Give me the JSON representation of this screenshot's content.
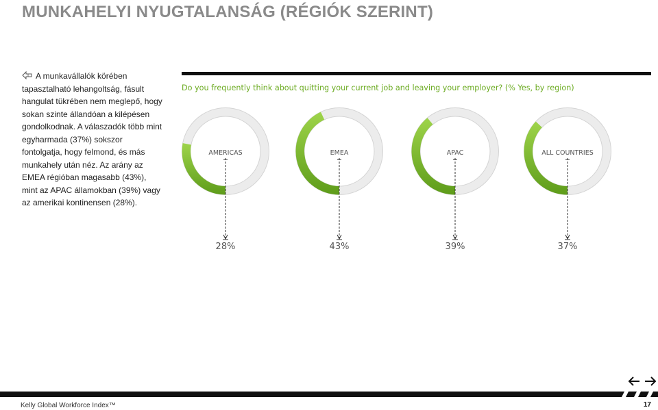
{
  "page": {
    "title": "MUNKAHELYI NYUGTALANSÁG (RÉGIÓK SZERINT)",
    "intro_text": "A munkavállalók körében tapasztalható lehangoltság, fásult hangulat tükrében nem meglepő, hogy sokan szinte állandóan a kilépésen gondolkodnak. A válaszadók több mint egyharmada (37%) sokszor fontolgatja, hogy felmond, és más munkahely után néz. Az arány az EMEA régióban magasabb (43%), mint az APAC államokban (39%) vagy az amerikai kontinensen (28%).",
    "bullet_icon": "pointing-hand-icon"
  },
  "footer": {
    "source": "Kelly Global Workforce Index™",
    "page_number": "17",
    "prev_icon": "arrow-left-icon",
    "next_icon": "arrow-right-icon"
  },
  "chart_data": {
    "type": "pie",
    "title": "Do you frequently think about quitting your current job and leaving your employer? (% Yes, by region)",
    "categories": [
      "AMERICAS",
      "EMEA",
      "APAC",
      "ALL COUNTRIES"
    ],
    "values": [
      28,
      43,
      39,
      37
    ],
    "value_labels": [
      "28%",
      "43%",
      "39%",
      "37%"
    ],
    "colors": {
      "accent": "#6aaa1f",
      "accent_light": "#9ed44a",
      "ring_background": "#ececec",
      "ring_border": "#d4d4d4",
      "question_text": "#6aaa1f"
    }
  }
}
